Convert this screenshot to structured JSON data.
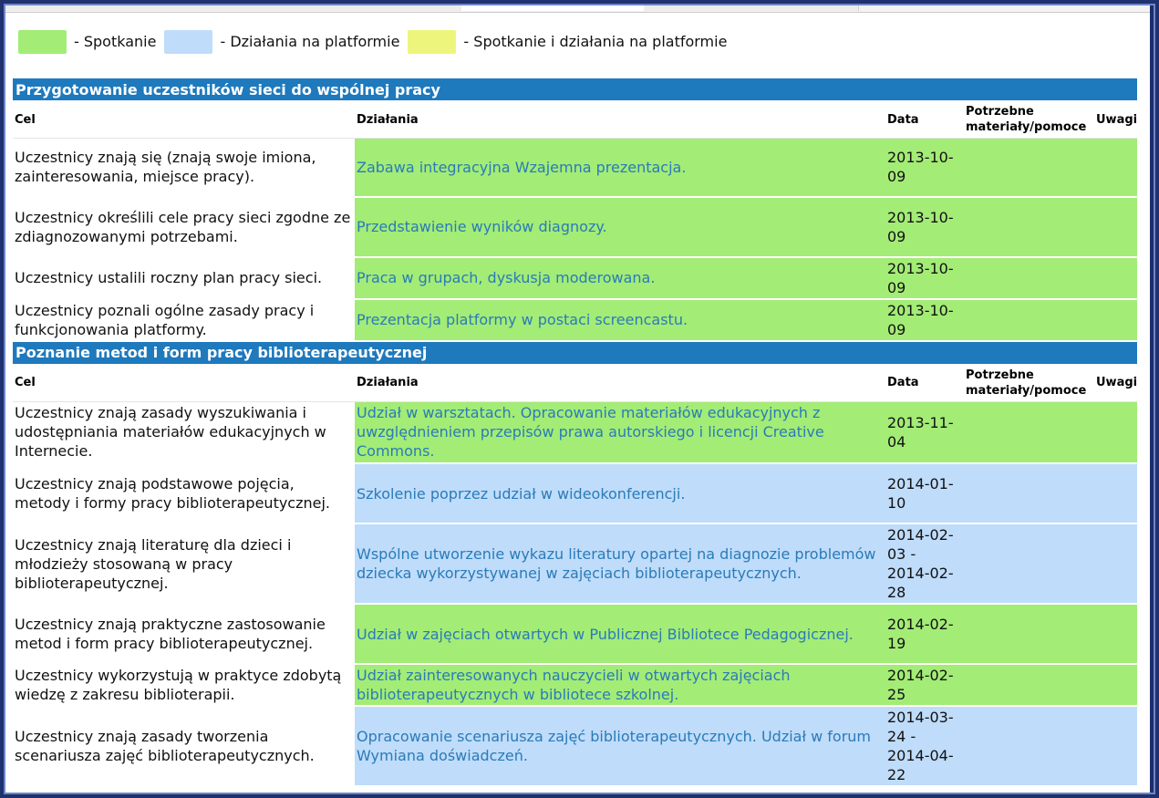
{
  "legend": {
    "items": [
      {
        "label": "- Spotkanie",
        "color": "#a3ec76"
      },
      {
        "label": "- Działania na platformie",
        "color": "#bfdcfa"
      },
      {
        "label": "- Spotkanie i działania na platformie",
        "color": "#eef57c"
      }
    ]
  },
  "columns": {
    "goal": "Cel",
    "action": "Działania",
    "date": "Data",
    "materials": "Potrzebne materiały/pomoce",
    "notes": "Uwagi"
  },
  "sections": [
    {
      "title": "Przygotowanie uczestników sieci do wspólnej pracy",
      "rows": [
        {
          "goal": "Uczestnicy znają się (znają swoje imiona, zainteresowania, miejsce pracy).",
          "action": "Zabawa integracyjna Wzajemna prezentacja.",
          "date": "2013-10-09",
          "materials": "",
          "notes": "",
          "type": "green"
        },
        {
          "goal": "Uczestnicy określili cele pracy sieci zgodne ze zdiagnozowanymi potrzebami.",
          "action": "Przedstawienie wyników diagnozy.",
          "date": "2013-10-09",
          "materials": "",
          "notes": "",
          "type": "green"
        },
        {
          "goal": "Uczestnicy ustalili roczny plan pracy sieci.",
          "action": "Praca w grupach, dyskusja moderowana.",
          "date": "2013-10-09",
          "materials": "",
          "notes": "",
          "type": "green"
        },
        {
          "goal": "Uczestnicy poznali ogólne zasady pracy i funkcjonowania platformy.",
          "action": "Prezentacja platformy w postaci screencastu.",
          "date": "2013-10-09",
          "materials": "",
          "notes": "",
          "type": "green"
        }
      ]
    },
    {
      "title": "Poznanie metod i form pracy biblioterapeutycznej",
      "rows": [
        {
          "goal": "Uczestnicy znają zasady wyszukiwania i udostępniania materiałów edukacyjnych w Internecie.",
          "action": "Udział w warsztatach. Opracowanie materiałów edukacyjnych z uwzględnieniem przepisów prawa autorskiego i licencji Creative Commons.",
          "date": "2013-11-04",
          "materials": "",
          "notes": "",
          "type": "green"
        },
        {
          "goal": "Uczestnicy znają podstawowe pojęcia, metody i formy pracy biblioterapeutycznej.",
          "action": "Szkolenie poprzez udział w wideokonferencji.",
          "date": "2014-01-10",
          "materials": "",
          "notes": "",
          "type": "blue"
        },
        {
          "goal": "Uczestnicy znają literaturę dla dzieci i młodzieży stosowaną w pracy biblioterapeutycznej.",
          "action": "Wspólne utworzenie wykazu literatury opartej na diagnozie problemów dziecka wykorzystywanej w zajęciach biblioterapeutycznych.",
          "date": "2014-02-03 - 2014-02-28",
          "materials": "",
          "notes": "",
          "type": "blue"
        },
        {
          "goal": "Uczestnicy znają praktyczne zastosowanie metod i form pracy biblioterapeutycznej.",
          "action": "Udział w zajęciach otwartych w Publicznej Bibliotece Pedagogicznej.",
          "date": "2014-02-19",
          "materials": "",
          "notes": "",
          "type": "green"
        },
        {
          "goal": "Uczestnicy wykorzystują w praktyce zdobytą wiedzę z zakresu biblioterapii.",
          "action": "Udział zainteresowanych nauczycieli w otwartych zajęciach biblioterapeutycznych w bibliotece szkolnej.",
          "date": "2014-02-25",
          "materials": "",
          "notes": "",
          "type": "green"
        },
        {
          "goal": "Uczestnicy znają zasady tworzenia scenariusza zajęć biblioterapeutycznych.",
          "action": "Opracowanie scenariusza zajęć biblioterapeutycznych. Udział w forum Wymiana doświadczeń.",
          "date": "2014-03-24 - 2014-04-22",
          "materials": "",
          "notes": "",
          "type": "blue"
        }
      ]
    }
  ]
}
